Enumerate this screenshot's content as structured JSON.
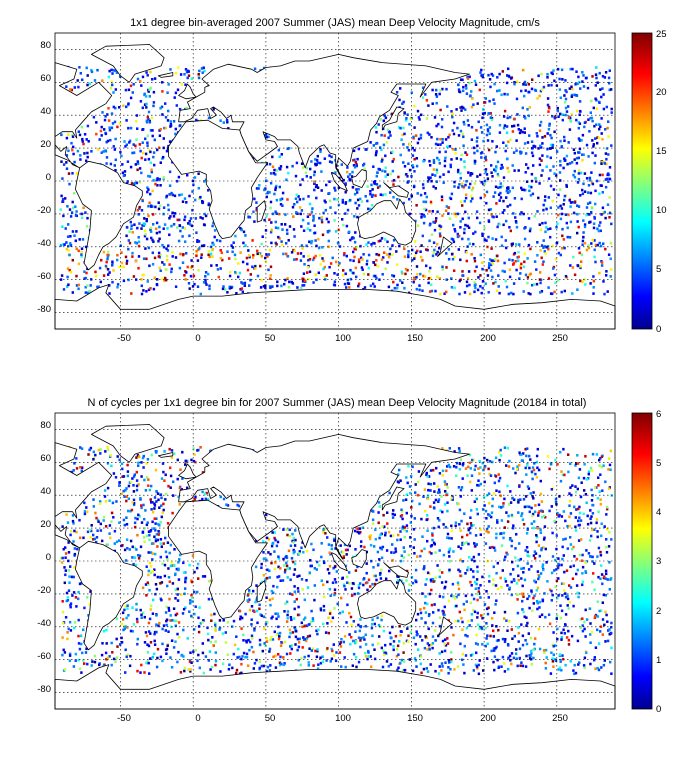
{
  "chart_data": [
    {
      "type": "heatmap",
      "title": "1x1 degree bin-averaged 2007 Summer (JAS) mean Deep Velocity Magnitude, cm/s",
      "xlim": [
        -95,
        290
      ],
      "ylim": [
        -90,
        90
      ],
      "x_ticks": [
        "-50",
        "0",
        "50",
        "100",
        "150",
        "200",
        "250"
      ],
      "y_ticks": [
        "80",
        "60",
        "40",
        "20",
        "0",
        "-20",
        "-40",
        "-60",
        "-80"
      ],
      "colorbar": {
        "min": 0,
        "max": 25,
        "ticks": [
          "25",
          "20",
          "15",
          "10",
          "5",
          "0"
        ],
        "colormap": "jet"
      },
      "grid": true
    },
    {
      "type": "heatmap",
      "title": "N of cycles per 1x1 degree bin for 2007 Summer (JAS) mean Deep Velocity Magnitude (20184 in total)",
      "xlim": [
        -95,
        290
      ],
      "ylim": [
        -90,
        90
      ],
      "x_ticks": [
        "-50",
        "0",
        "50",
        "100",
        "150",
        "200",
        "250"
      ],
      "y_ticks": [
        "80",
        "60",
        "40",
        "20",
        "0",
        "-20",
        "-40",
        "-60",
        "-80"
      ],
      "colorbar": {
        "min": 0,
        "max": 6,
        "ticks": [
          "6",
          "5",
          "4",
          "3",
          "2",
          "1",
          "0"
        ],
        "colormap": "jet"
      },
      "grid": true
    }
  ]
}
